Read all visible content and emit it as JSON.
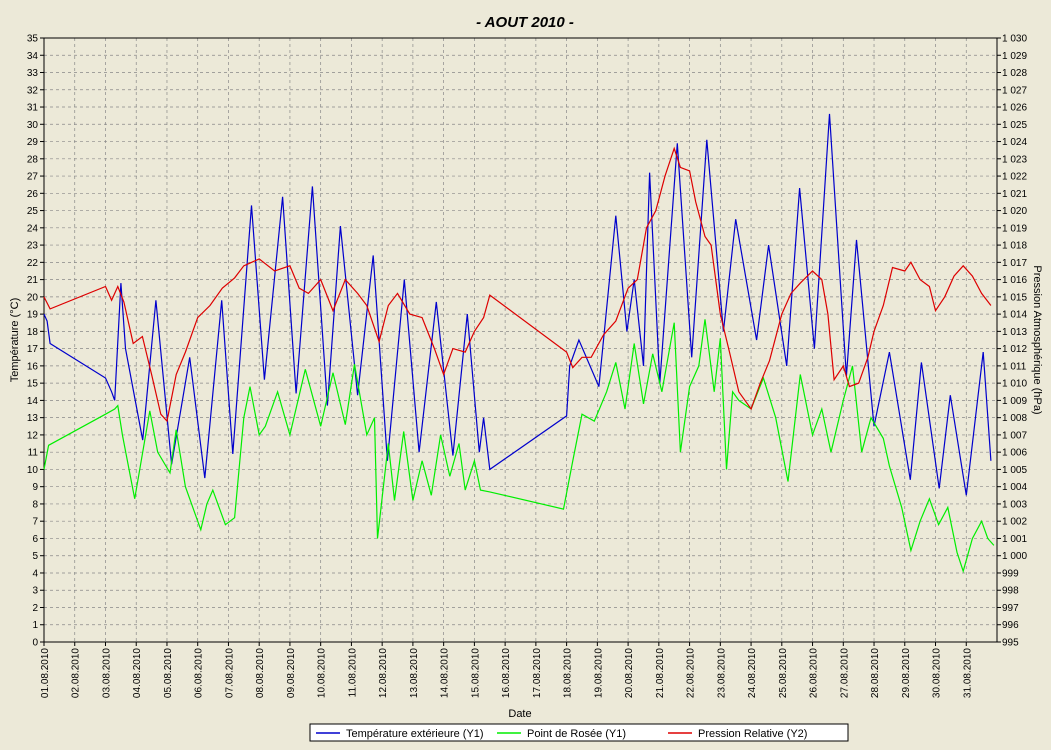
{
  "chart_data": {
    "type": "line",
    "title": "-  AOUT  2010  -",
    "xlabel": "Date",
    "ylabel": "Température (°C)",
    "y2label": "Pression Atmosphérique (hPa)",
    "grid": true,
    "legend": "bottom",
    "xlim": [
      1,
      32
    ],
    "ylim": [
      0,
      35
    ],
    "y2lim": [
      995,
      1030
    ],
    "xticks": [
      {
        "value": 1,
        "label": "01.08.2010"
      },
      {
        "value": 2,
        "label": "02.08.2010"
      },
      {
        "value": 3,
        "label": "03.08.2010"
      },
      {
        "value": 4,
        "label": "04.08.2010"
      },
      {
        "value": 5,
        "label": "05.08.2010"
      },
      {
        "value": 6,
        "label": "06.08.2010"
      },
      {
        "value": 7,
        "label": "07.08.2010"
      },
      {
        "value": 8,
        "label": "08.08.2010"
      },
      {
        "value": 9,
        "label": "09.08.2010"
      },
      {
        "value": 10,
        "label": "10.08.2010"
      },
      {
        "value": 11,
        "label": "11.08.2010"
      },
      {
        "value": 12,
        "label": "12.08.2010"
      },
      {
        "value": 13,
        "label": "13.08.2010"
      },
      {
        "value": 14,
        "label": "14.08.2010"
      },
      {
        "value": 15,
        "label": "15.08.2010"
      },
      {
        "value": 16,
        "label": "16.08.2010"
      },
      {
        "value": 17,
        "label": "17.08.2010"
      },
      {
        "value": 18,
        "label": "18.08.2010"
      },
      {
        "value": 19,
        "label": "19.08.2010"
      },
      {
        "value": 20,
        "label": "20.08.2010"
      },
      {
        "value": 21,
        "label": "21.08.2010"
      },
      {
        "value": 22,
        "label": "22.08.2010"
      },
      {
        "value": 23,
        "label": "23.08.2010"
      },
      {
        "value": 24,
        "label": "24.08.2010"
      },
      {
        "value": 25,
        "label": "25.08.2010"
      },
      {
        "value": 26,
        "label": "26.08.2010"
      },
      {
        "value": 27,
        "label": "27.08.2010"
      },
      {
        "value": 28,
        "label": "28.08.2010"
      },
      {
        "value": 29,
        "label": "29.08.2010"
      },
      {
        "value": 30,
        "label": "30.08.2010"
      },
      {
        "value": 31,
        "label": "31.08.2010"
      }
    ],
    "yticks": [
      0,
      1,
      2,
      3,
      4,
      5,
      6,
      7,
      8,
      9,
      10,
      11,
      12,
      13,
      14,
      15,
      16,
      17,
      18,
      19,
      20,
      21,
      22,
      23,
      24,
      25,
      26,
      27,
      28,
      29,
      30,
      31,
      32,
      33,
      34,
      35
    ],
    "y2ticks": [
      995,
      996,
      997,
      998,
      999,
      {
        "value": 1000,
        "label": "1 000"
      },
      {
        "value": 1001,
        "label": "1 001"
      },
      {
        "value": 1002,
        "label": "1 002"
      },
      {
        "value": 1003,
        "label": "1 003"
      },
      {
        "value": 1004,
        "label": "1 004"
      },
      {
        "value": 1005,
        "label": "1 005"
      },
      {
        "value": 1006,
        "label": "1 006"
      },
      {
        "value": 1007,
        "label": "1 007"
      },
      {
        "value": 1008,
        "label": "1 008"
      },
      {
        "value": 1009,
        "label": "1 009"
      },
      {
        "value": 1010,
        "label": "1 010"
      },
      {
        "value": 1011,
        "label": "1 011"
      },
      {
        "value": 1012,
        "label": "1 012"
      },
      {
        "value": 1013,
        "label": "1 013"
      },
      {
        "value": 1014,
        "label": "1 014"
      },
      {
        "value": 1015,
        "label": "1 015"
      },
      {
        "value": 1016,
        "label": "1 016"
      },
      {
        "value": 1017,
        "label": "1 017"
      },
      {
        "value": 1018,
        "label": "1 018"
      },
      {
        "value": 1019,
        "label": "1 019"
      },
      {
        "value": 1020,
        "label": "1 020"
      },
      {
        "value": 1021,
        "label": "1 021"
      },
      {
        "value": 1022,
        "label": "1 022"
      },
      {
        "value": 1023,
        "label": "1 023"
      },
      {
        "value": 1024,
        "label": "1 024"
      },
      {
        "value": 1025,
        "label": "1 025"
      },
      {
        "value": 1026,
        "label": "1 026"
      },
      {
        "value": 1027,
        "label": "1 027"
      },
      {
        "value": 1028,
        "label": "1 028"
      },
      {
        "value": 1029,
        "label": "1 029"
      },
      {
        "value": 1030,
        "label": "1 030"
      }
    ],
    "series": [
      {
        "name": "Température extérieure (Y1)",
        "color": "#0000cc",
        "x": [
          1.0,
          1.1,
          1.2,
          3.0,
          3.2,
          3.3,
          3.5,
          3.65,
          4.21,
          4.64,
          5.15,
          5.74,
          6.23,
          6.78,
          7.14,
          7.75,
          8.17,
          8.76,
          9.2,
          9.73,
          10.22,
          10.64,
          11.2,
          11.71,
          12.17,
          12.72,
          13.2,
          13.76,
          14.3,
          14.77,
          15.16,
          15.3,
          15.5,
          18.0,
          18.1,
          18.4,
          19.05,
          19.6,
          19.96,
          20.2,
          20.5,
          20.7,
          21.03,
          21.6,
          22.07,
          22.56,
          23.1,
          23.5,
          24.18,
          24.57,
          25.16,
          25.58,
          26.06,
          26.55,
          27.1,
          27.43,
          28.0,
          28.5,
          29.18,
          29.54,
          30.12,
          30.48,
          31.0,
          31.55,
          31.8
        ],
        "values": [
          19,
          18.6,
          17.3,
          15.3,
          14.5,
          14,
          20.8,
          17,
          11.7,
          19.8,
          10.3,
          16.5,
          9.5,
          19.8,
          10.9,
          25.3,
          15.2,
          25.8,
          14.4,
          26.4,
          13.7,
          24.1,
          14.3,
          22.4,
          10.5,
          21,
          11,
          19.7,
          10.8,
          19,
          11,
          13,
          10,
          13.1,
          16,
          17.5,
          14.8,
          24.7,
          18,
          21,
          16,
          27.2,
          15,
          28.9,
          16.5,
          29.1,
          18,
          24.5,
          17.5,
          23,
          16,
          26.3,
          17,
          30.6,
          15.4,
          23.3,
          12.5,
          16.8,
          9.4,
          16.2,
          8.9,
          14.3,
          8.5,
          16.8,
          10.5
        ]
      },
      {
        "name": "Point de Rosée (Y1)",
        "color": "#00ee00",
        "x": [
          1.0,
          1.15,
          3.0,
          3.3,
          3.4,
          3.55,
          3.95,
          4.44,
          4.7,
          5.1,
          5.3,
          5.6,
          6.1,
          6.3,
          6.49,
          6.9,
          7.2,
          7.5,
          7.7,
          8.0,
          8.2,
          8.6,
          9.0,
          9.5,
          10.0,
          10.4,
          10.8,
          11.1,
          11.5,
          11.75,
          11.85,
          12.2,
          12.4,
          12.7,
          13.0,
          13.3,
          13.6,
          13.9,
          14.2,
          14.5,
          14.7,
          15.0,
          15.2,
          15.5,
          17.9,
          18.2,
          18.5,
          18.9,
          19.3,
          19.6,
          19.9,
          20.2,
          20.5,
          20.8,
          21.1,
          21.5,
          21.7,
          22.0,
          22.3,
          22.5,
          22.8,
          23.0,
          23.2,
          23.4,
          23.6,
          24.0,
          24.4,
          24.8,
          25.2,
          25.6,
          26.0,
          26.3,
          26.6,
          27.0,
          27.3,
          27.6,
          27.9,
          28.3,
          28.5,
          28.9,
          29.2,
          29.5,
          29.8,
          30.1,
          30.4,
          30.7,
          30.9,
          31.2,
          31.5,
          31.7,
          31.9
        ],
        "values": [
          10,
          11.4,
          13.2,
          13.5,
          13.7,
          12,
          8.3,
          13.4,
          11,
          9.8,
          12.3,
          9,
          6.5,
          8,
          8.8,
          6.8,
          7.2,
          13,
          14.8,
          12,
          12.5,
          14.5,
          12,
          15.8,
          12.5,
          15.6,
          12.6,
          16.1,
          12,
          13,
          6,
          11.5,
          8.2,
          12.2,
          8.2,
          10.5,
          8.5,
          12,
          9.6,
          11.5,
          8.8,
          10.5,
          8.8,
          8.7,
          7.7,
          10.5,
          13.2,
          12.8,
          14.5,
          16.2,
          13.5,
          17.3,
          13.8,
          16.7,
          14.5,
          18.5,
          11,
          14.8,
          16,
          18.7,
          14.5,
          17.6,
          10,
          14.5,
          14,
          13.5,
          15.3,
          13,
          9.3,
          15.5,
          12,
          13.5,
          11,
          14,
          16,
          11,
          13,
          11.8,
          10.2,
          7.8,
          5.3,
          7,
          8.3,
          6.8,
          7.8,
          5.2,
          4.1,
          6,
          7,
          6,
          5.6
        ]
      },
      {
        "name": "Pression Relative (Y2)",
        "color": "#dd0000",
        "axis": "y2",
        "x": [
          1.0,
          1.2,
          3.0,
          3.2,
          3.4,
          3.6,
          3.9,
          4.2,
          4.5,
          4.8,
          5.0,
          5.3,
          5.6,
          6.0,
          6.4,
          6.8,
          7.2,
          7.5,
          8.0,
          8.5,
          9.0,
          9.3,
          9.6,
          10.0,
          10.4,
          10.8,
          11.2,
          11.5,
          11.9,
          12.2,
          12.5,
          12.9,
          13.3,
          13.7,
          14.0,
          14.3,
          14.7,
          15.0,
          15.3,
          15.5,
          18.0,
          18.2,
          18.5,
          18.8,
          19.2,
          19.6,
          20.0,
          20.3,
          20.6,
          20.9,
          21.2,
          21.5,
          21.7,
          22.0,
          22.2,
          22.5,
          22.7,
          23.0,
          23.3,
          23.6,
          24.0,
          24.3,
          24.6,
          25.0,
          25.3,
          25.6,
          26.0,
          26.3,
          26.5,
          26.7,
          27.0,
          27.2,
          27.5,
          27.8,
          28.0,
          28.3,
          28.6,
          29.0,
          29.2,
          29.5,
          29.8,
          30.0,
          30.3,
          30.6,
          30.9,
          31.2,
          31.5,
          31.8
        ],
        "values": [
          1015,
          1014.3,
          1015.6,
          1014.8,
          1015.6,
          1014.7,
          1012.3,
          1012.7,
          1010.5,
          1008.2,
          1007.8,
          1010.5,
          1011.8,
          1013.8,
          1014.5,
          1015.5,
          1016.1,
          1016.8,
          1017.2,
          1016.5,
          1016.8,
          1015.5,
          1015.2,
          1016,
          1014.2,
          1016,
          1015.2,
          1014.5,
          1012.4,
          1014.5,
          1015.2,
          1014,
          1013.8,
          1012,
          1010.5,
          1012,
          1011.8,
          1013,
          1013.8,
          1015.1,
          1011.8,
          1010.9,
          1011.5,
          1011.5,
          1012.8,
          1013.6,
          1015.5,
          1016,
          1019,
          1020,
          1022,
          1023.6,
          1022.5,
          1022.3,
          1020.5,
          1018.5,
          1018,
          1014,
          1011.8,
          1009.5,
          1008.5,
          1010,
          1011.3,
          1014,
          1015.2,
          1015.8,
          1016.5,
          1016,
          1014,
          1010.2,
          1011,
          1009.8,
          1010,
          1011.5,
          1013,
          1014.5,
          1016.7,
          1016.5,
          1017,
          1016,
          1015.6,
          1014.2,
          1015,
          1016.2,
          1016.8,
          1016.2,
          1015.2,
          1014.5
        ]
      }
    ]
  }
}
